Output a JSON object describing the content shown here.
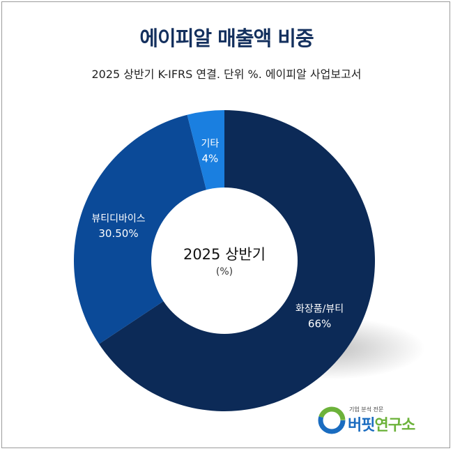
{
  "title": "에이피알 매출액 비중",
  "subtitle": "2025 상반기 K-IFRS 연결. 단위 %. 에이피알 사업보고서",
  "chart_data": {
    "type": "pie",
    "donut": true,
    "title": "에이피알 매출액 비중",
    "subtitle": "2025 상반기 K-IFRS 연결. 단위 %. 에이피알 사업보고서",
    "center_label": "2025 상반기",
    "center_sublabel": "(%)",
    "slices": [
      {
        "label": "화장품/뷰티",
        "value": 66,
        "value_label": "66%",
        "color": "#0c2a57"
      },
      {
        "label": "뷰티디바이스",
        "value": 30.5,
        "value_label": "30.50%",
        "color": "#0b4a98"
      },
      {
        "label": "기타",
        "value": 4,
        "value_label": "4%",
        "color": "#1a7fe0"
      }
    ],
    "start": "top",
    "direction": "clockwise",
    "legend": "none"
  },
  "logo": {
    "small": "기업 분석 전문",
    "main_a": "버핏",
    "main_b": "연구소"
  }
}
